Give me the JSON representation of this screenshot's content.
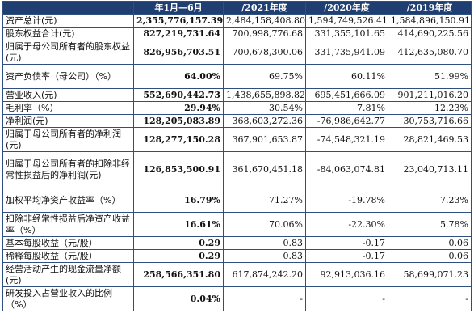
{
  "table": {
    "headers": [
      "",
      "年1月—6月",
      "/2021年度",
      "/2020年度",
      "/2019年度"
    ],
    "rows": [
      {
        "label": "资产总计(元)",
        "values": [
          "2,355,776,157.39",
          "2,484,158,408.80",
          "1,594,749,526.41",
          "1,584,896,150.91"
        ],
        "lines": 1
      },
      {
        "label": "股东权益合计(元)",
        "values": [
          "827,219,731.64",
          "700,998,776.68",
          "331,355,101.65",
          "414,690,225.56"
        ],
        "lines": 1
      },
      {
        "label": "归属于母公司所有者的股东权益(元)",
        "values": [
          "826,956,703.51",
          "700,678,300.06",
          "331,735,941.09",
          "412,635,080.70"
        ],
        "lines": 2
      },
      {
        "label": "资产负债率（母公司）（%）",
        "values": [
          "64.00%",
          "69.75%",
          "60.11%",
          "51.99%"
        ],
        "lines": 2
      },
      {
        "label": "营业收入(元)",
        "values": [
          "552,690,442.73",
          "1,438,655,898.82",
          "695,451,666.09",
          "901,211,016.20"
        ],
        "lines": 1
      },
      {
        "label": "毛利率（%）",
        "values": [
          "29.94%",
          "30.54%",
          "7.81%",
          "12.23%"
        ],
        "lines": 1
      },
      {
        "label": "净利润(元)",
        "values": [
          "128,205,083.89",
          "368,603,272.36",
          "-76,986,642.77",
          "30,753,716.66"
        ],
        "lines": 1
      },
      {
        "label": "归属于母公司所有者的净利润(元)",
        "values": [
          "128,277,150.28",
          "367,901,653.87",
          "-74,548,321.19",
          "28,821,469.53"
        ],
        "lines": 2
      },
      {
        "label": "归属于母公司所有者的扣除非经常性损益后的净利润(元)",
        "values": [
          "126,853,500.91",
          "361,670,451.18",
          "-84,063,074.81",
          "23,040,713.11"
        ],
        "lines": 3
      },
      {
        "label": "加权平均净资产收益率（%）",
        "values": [
          "16.79%",
          "71.27%",
          "-19.78%",
          "7.23%"
        ],
        "lines": 2
      },
      {
        "label": "扣除非经常性损益后净资产收益率（%）",
        "values": [
          "16.61%",
          "70.06%",
          "-22.30%",
          "5.78%"
        ],
        "lines": 2
      },
      {
        "label": "基本每股收益（元/股）",
        "values": [
          "0.29",
          "0.83",
          "-0.17",
          "0.06"
        ],
        "lines": 1
      },
      {
        "label": "稀释每股收益（元/股）",
        "values": [
          "0.29",
          "0.83",
          "-0.17",
          "0.06"
        ],
        "lines": 1
      },
      {
        "label": "经营活动产生的现金流量净额(元)",
        "values": [
          "258,566,351.80",
          "617,874,242.20",
          "92,913,036.16",
          "58,699,071.23"
        ],
        "lines": 2
      },
      {
        "label": "研发投入占营业收入的比例（%）",
        "values": [
          "0.04%",
          "-",
          "-",
          "-"
        ],
        "lines": 2
      }
    ]
  }
}
